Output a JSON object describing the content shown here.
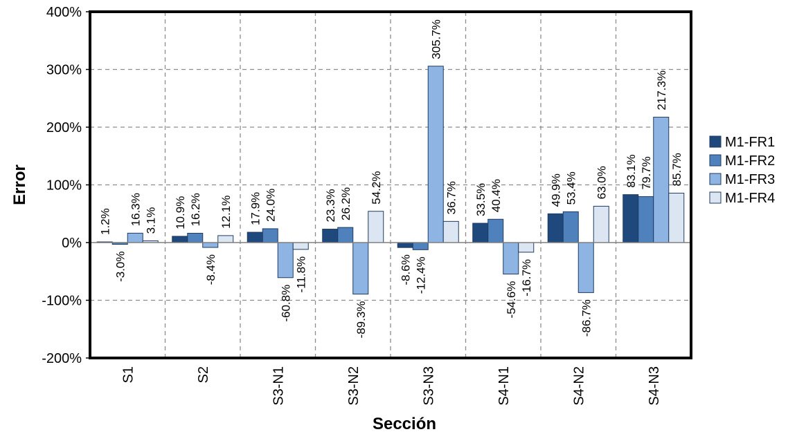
{
  "chart_data": {
    "type": "bar",
    "title": "",
    "xlabel": "Sección",
    "ylabel": "Error",
    "ylim": [
      -200,
      400
    ],
    "yticks": [
      -200,
      -100,
      0,
      100,
      200,
      300,
      400
    ],
    "ytick_labels": [
      "-200%",
      "-100%",
      "0%",
      "100%",
      "200%",
      "300%",
      "400%"
    ],
    "grid": true,
    "legend_position": "right",
    "categories": [
      "S1",
      "S2",
      "S3-N1",
      "S3-N2",
      "S3-N3",
      "S4-N1",
      "S4-N2",
      "S4-N3"
    ],
    "series": [
      {
        "name": "M1-FR1",
        "color": "#1f497d",
        "values": [
          1.2,
          10.9,
          17.9,
          23.3,
          -8.6,
          33.5,
          49.9,
          83.1
        ]
      },
      {
        "name": "M1-FR2",
        "color": "#4f81bd",
        "values": [
          -3.0,
          16.2,
          24.0,
          26.2,
          -12.4,
          40.4,
          53.4,
          79.7
        ]
      },
      {
        "name": "M1-FR3",
        "color": "#8eb4e3",
        "values": [
          16.3,
          -8.4,
          -60.8,
          -89.3,
          305.7,
          -54.6,
          -86.7,
          217.3
        ]
      },
      {
        "name": "M1-FR4",
        "color": "#dce6f2",
        "values": [
          3.1,
          12.1,
          -11.8,
          54.2,
          36.7,
          -16.7,
          63.0,
          85.7
        ]
      }
    ]
  }
}
